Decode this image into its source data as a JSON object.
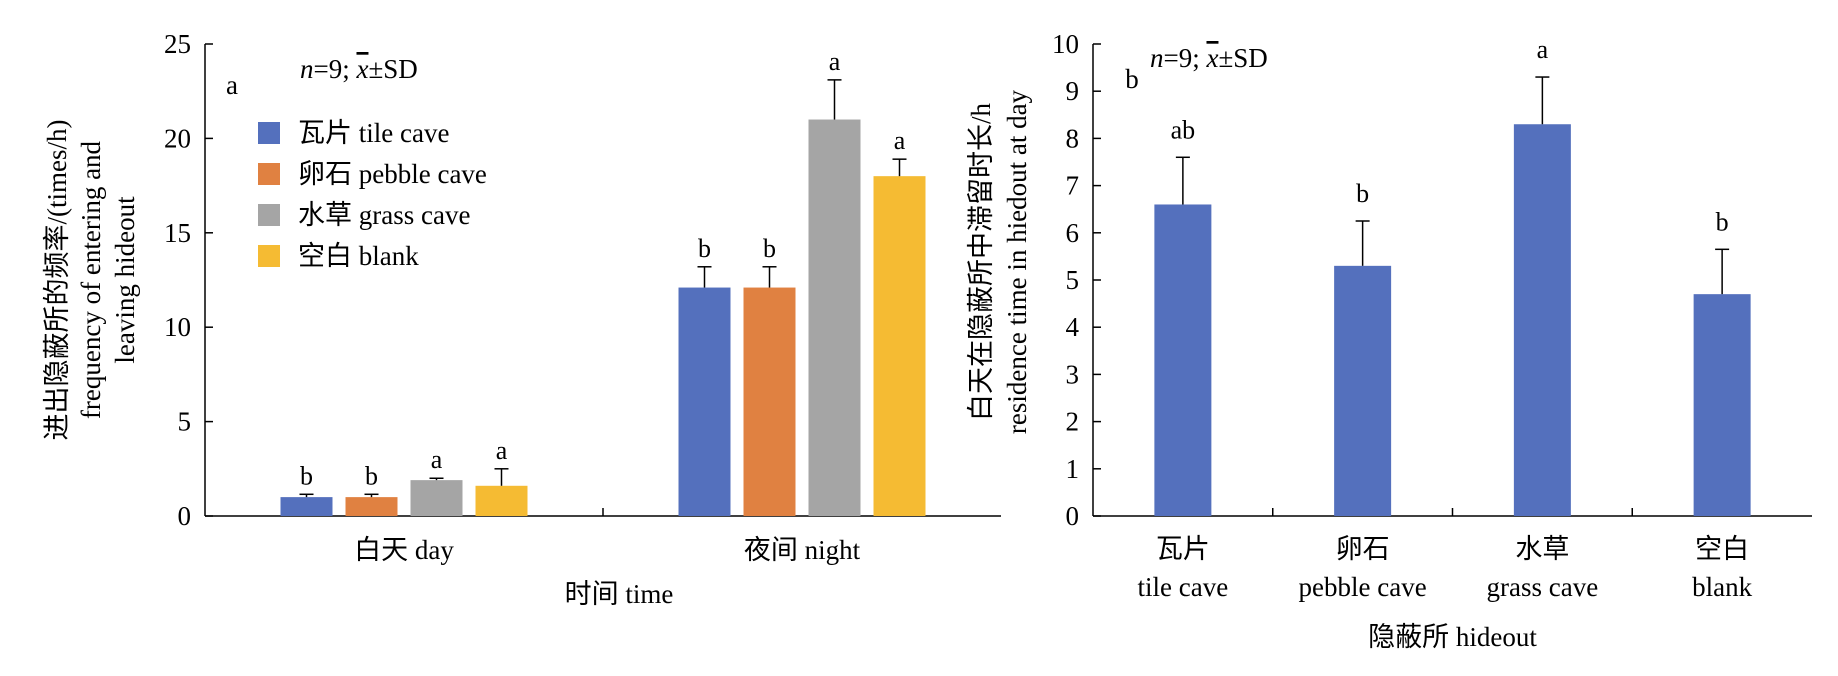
{
  "chart_data": [
    {
      "panel_label": "a",
      "type": "bar",
      "note": {
        "n": "n",
        "eq": "=9; ",
        "xbar": "x",
        "pm": "±SD"
      },
      "xlabel": "时间 time",
      "ylabel_lines": [
        "进出隐蔽所的频率/(times/h)",
        "frequency of entering and",
        "leaving hideout"
      ],
      "categories": [
        "白天 day",
        "夜间 night"
      ],
      "ylim": [
        0,
        25
      ],
      "yticks": [
        0,
        5,
        10,
        15,
        20,
        25
      ],
      "grid": false,
      "legend_position": "top-left",
      "series": [
        {
          "name": "瓦片 tile cave",
          "color": "#5470bd",
          "values": [
            1.0,
            12.1
          ],
          "errors": [
            0.15,
            1.1
          ],
          "labels": [
            "b",
            "b"
          ]
        },
        {
          "name": "卵石 pebble cave",
          "color": "#e08141",
          "values": [
            1.0,
            12.1
          ],
          "errors": [
            0.15,
            1.1
          ],
          "labels": [
            "b",
            "b"
          ]
        },
        {
          "name": "水草 grass cave",
          "color": "#a5a5a5",
          "values": [
            1.9,
            21.0
          ],
          "errors": [
            0.1,
            2.1
          ],
          "labels": [
            "a",
            "a"
          ]
        },
        {
          "name": "空白 blank",
          "color": "#f5bb33",
          "values": [
            1.6,
            18.0
          ],
          "errors": [
            0.9,
            0.9
          ],
          "labels": [
            "a",
            "a"
          ]
        }
      ]
    },
    {
      "panel_label": "b",
      "type": "bar",
      "note": {
        "n": "n",
        "eq": "=9; ",
        "xbar": "x",
        "pm": "±SD"
      },
      "xlabel": "隐蔽所 hideout",
      "ylabel_lines": [
        "白天在隐蔽所中滞留时长/h",
        "residence time  in hiedout at day"
      ],
      "categories": [
        [
          "瓦片",
          "tile cave"
        ],
        [
          "卵石",
          "pebble cave"
        ],
        [
          "水草",
          "grass cave"
        ],
        [
          "空白",
          "blank"
        ]
      ],
      "ylim": [
        0,
        10
      ],
      "yticks": [
        0,
        1,
        2,
        3,
        4,
        5,
        6,
        7,
        8,
        9,
        10
      ],
      "grid": false,
      "series": [
        {
          "color": "#5470bd",
          "values": [
            6.6,
            5.3,
            8.3,
            4.7
          ],
          "errors": [
            1.0,
            0.95,
            1.0,
            0.95
          ],
          "labels": [
            "ab",
            "b",
            "a",
            "b"
          ]
        }
      ]
    }
  ]
}
